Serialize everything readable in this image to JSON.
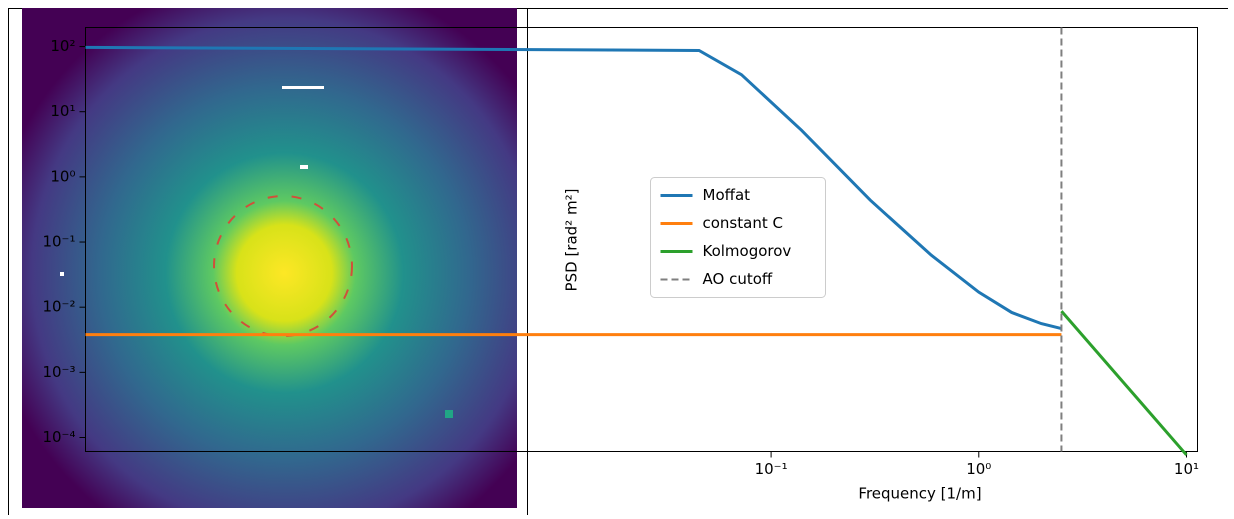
{
  "chart_data": {
    "type": "line",
    "xlabel": "Frequency [1/m]",
    "ylabel": "PSD [rad² m²]",
    "xscale": "log",
    "yscale": "log",
    "xlim": [
      5e-05,
      11.3
    ],
    "ylim": [
      6.1e-05,
      196
    ],
    "xticks": [
      {
        "value": 0.1,
        "label": "10⁻¹"
      },
      {
        "value": 1,
        "label": "10⁰"
      },
      {
        "value": 10,
        "label": "10¹"
      }
    ],
    "yticks": [
      {
        "value": 0.0001,
        "label": "10⁻⁴"
      },
      {
        "value": 0.001,
        "label": "10⁻³"
      },
      {
        "value": 0.01,
        "label": "10⁻²"
      },
      {
        "value": 0.1,
        "label": "10⁻¹"
      },
      {
        "value": 1,
        "label": "10⁰"
      },
      {
        "value": 10,
        "label": "10¹"
      },
      {
        "value": 100,
        "label": "10²"
      }
    ],
    "series": [
      {
        "name": "Moffat",
        "color": "#1f77b4",
        "x": [
          5e-05,
          0.045,
          0.072,
          0.14,
          0.3,
          0.59,
          1.0,
          1.44,
          2.0,
          2.5
        ],
        "values": [
          97,
          87,
          37,
          5.2,
          0.44,
          0.063,
          0.017,
          0.0083,
          0.0056,
          0.0047
        ]
      },
      {
        "name": "constant C",
        "color": "#ff7f0e",
        "x": [
          5e-05,
          2.5
        ],
        "values": [
          0.0038,
          0.0038
        ]
      },
      {
        "name": "Kolmogorov",
        "color": "#2ca02c",
        "x": [
          2.5,
          10
        ],
        "values": [
          0.0087,
          5.4e-05
        ]
      }
    ],
    "vline": {
      "name": "AO cutoff",
      "x": 2.5,
      "color": "#7f7f7f"
    },
    "legend": "center left"
  }
}
